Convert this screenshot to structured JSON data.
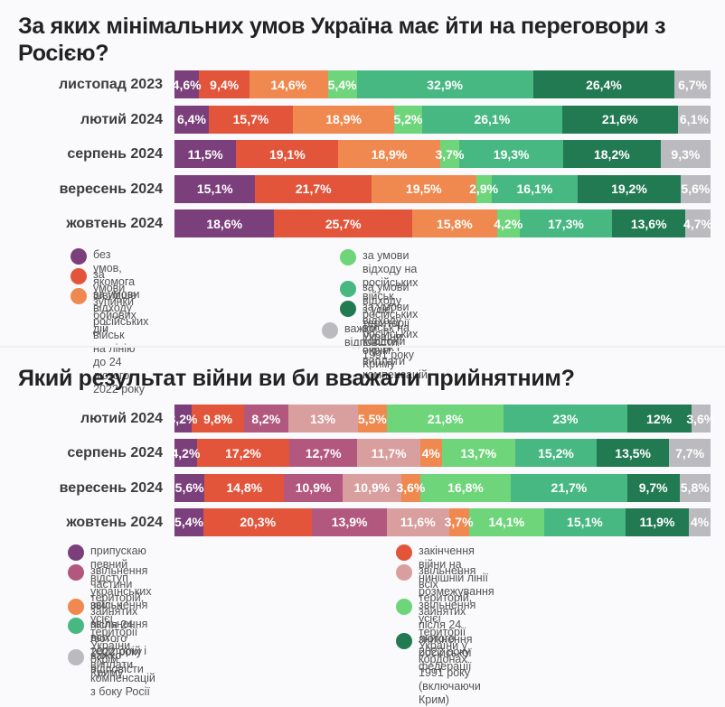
{
  "chart_data": [
    {
      "type": "bar",
      "orientation": "horizontal-stacked-100",
      "title": "За яких мінімальних умов Україна має йти на переговори з Росією?",
      "categories": [
        "листопад 2023",
        "лютий 2024",
        "серпень 2024",
        "вересень 2024",
        "жовтень 2024"
      ],
      "series": [
        {
          "name": "без умов, якомога швидше",
          "color": "#7b3f7b",
          "values": [
            4.6,
            6.4,
            11.5,
            15.1,
            18.6
          ],
          "labels": [
            "4,6%",
            "6,4%",
            "11,5%",
            "15,1%",
            "18,6%"
          ]
        },
        {
          "name": "за умови зупинки бойових дій",
          "color": "#e2553b",
          "values": [
            9.4,
            15.7,
            19.1,
            21.7,
            25.7
          ],
          "labels": [
            "9,4%",
            "15,7%",
            "19,1%",
            "21,7%",
            "25,7%"
          ]
        },
        {
          "name": "за умови відходу російських військ на лінію до 24 лютого 2022 року",
          "color": "#f0894f",
          "values": [
            14.6,
            18.9,
            18.9,
            19.5,
            15.8
          ],
          "labels": [
            "14,6%",
            "18,9%",
            "18,9%",
            "19,5%",
            "15,8%"
          ]
        },
        {
          "name": "за умови відходу на російських військ з усієї території України, окрім Криму",
          "color": "#6ed57b",
          "values": [
            5.4,
            5.2,
            3.7,
            2.9,
            4.2
          ],
          "labels": [
            "5,4%",
            "5,2%",
            "3,7%",
            "2,9%",
            "4,2%"
          ]
        },
        {
          "name": "за умови відходу російських військ на кордони 1991 року",
          "color": "#48b883",
          "values": [
            32.9,
            26.1,
            19.3,
            16.1,
            17.3
          ],
          "labels": [
            "32,9%",
            "26,1%",
            "19,3%",
            "16,1%",
            "17,3%"
          ]
        },
        {
          "name": "за умови відходу російських військ і виплати компенсацій",
          "color": "#227a52",
          "values": [
            26.4,
            21.6,
            18.2,
            19.2,
            13.6
          ],
          "labels": [
            "26,4%",
            "21,6%",
            "18,2%",
            "19,2%",
            "13,6%"
          ]
        },
        {
          "name": "важко відповісти",
          "color": "#bbbabe",
          "values": [
            6.7,
            6.1,
            9.3,
            5.6,
            4.7
          ],
          "labels": [
            "6,7%",
            "6,1%",
            "9,3%",
            "5,6%",
            "4,7%"
          ]
        }
      ],
      "legend_columns": [
        [
          0,
          1,
          2
        ],
        [
          3,
          4,
          5,
          6
        ]
      ],
      "legend_lines": [
        [
          "без умов, якомога швидше"
        ],
        [
          "за умови зупинки бойових дій"
        ],
        [
          "за умови відходу російських військ",
          "на лінію до 24 лютого 2022 року"
        ],
        [
          "за умови відходу на російських військ",
          "з усієї території України, окрім Криму"
        ],
        [
          "за умови відходу російських військ на кордони 1991 року"
        ],
        [
          "за умови відходу російських військ і виплати компенсацій"
        ],
        [
          "важко відповісти"
        ]
      ],
      "xlim": [
        0,
        100
      ]
    },
    {
      "type": "bar",
      "orientation": "horizontal-stacked-100",
      "title": "Який результат війни ви би вважали прийнятним?",
      "categories": [
        "лютий 2024",
        "серпень 2024",
        "вересень 2024",
        "жовтень 2024"
      ],
      "series": [
        {
          "name": "припускаю певний відступ українських військ",
          "color": "#7b3f7b",
          "values": [
            3.2,
            4.2,
            5.6,
            5.4
          ],
          "labels": [
            "3,2%",
            "4,2%",
            "5,6%",
            "5,4%"
          ]
        },
        {
          "name": "закінчення війни на нинішній лінії розмежування",
          "color": "#e2553b",
          "values": [
            9.8,
            17.2,
            14.8,
            20.3
          ],
          "labels": [
            "9,8%",
            "17,2%",
            "14,8%",
            "20,3%"
          ]
        },
        {
          "name": "звільнення частини територій, зайнятих після 24 лютого 2022 року",
          "color": "#b2587f",
          "values": [
            8.2,
            12.7,
            10.9,
            13.9
          ],
          "labels": [
            "8,2%",
            "12,7%",
            "10,9%",
            "13,9%"
          ]
        },
        {
          "name": "звільнення всіх територій, зайнятих після 24 лютого 2022 року",
          "color": "#d99e9e",
          "values": [
            13,
            11.7,
            10.9,
            11.6
          ],
          "labels": [
            "13%",
            "11,7%",
            "10,9%",
            "11,6%"
          ]
        },
        {
          "name": "звільнення усієї території України, окрім Криму",
          "color": "#f0894f",
          "values": [
            5.5,
            4,
            3.6,
            3.7
          ],
          "labels": [
            "5,5%",
            "4%",
            "3,6%",
            "3,7%"
          ]
        },
        {
          "name": "звільнення усієї території України у кордонах 1991 року (включаючи Крим)",
          "color": "#6ed57b",
          "values": [
            21.8,
            13.7,
            16.8,
            14.1
          ],
          "labels": [
            "21,8%",
            "13,7%",
            "16,8%",
            "14,1%"
          ]
        },
        {
          "name": "звільнення всіх територій і виплати компенсацій з боку Росії",
          "color": "#48b883",
          "values": [
            23,
            15.2,
            21.7,
            15.1
          ],
          "labels": [
            "23%",
            "15,2%",
            "21,7%",
            "15,1%"
          ]
        },
        {
          "name": "зникнення російської федерації",
          "color": "#227a52",
          "values": [
            12,
            13.5,
            9.7,
            11.9
          ],
          "labels": [
            "12%",
            "13,5%",
            "9,7%",
            "11,9%"
          ]
        },
        {
          "name": "важко відповісти",
          "color": "#bbbabe",
          "values": [
            3.6,
            7.7,
            5.8,
            4
          ],
          "labels": [
            "3,6%",
            "7,7%",
            "5,8%",
            "4%"
          ]
        }
      ],
      "legend_left": [
        0,
        2,
        4,
        6,
        8
      ],
      "legend_right": [
        1,
        3,
        5,
        7
      ],
      "legend_lines": [
        [
          "припускаю певний відступ українських військ"
        ],
        [
          "закінчення війни на нинішній лінії розмежування"
        ],
        [
          "звільнення частини територій,",
          "зайнятих після 24 лютого 2022 року"
        ],
        [
          "звільнення всіх територій, зайнятих",
          "після 24 лютого 2022 року"
        ],
        [
          "звільнення усієї території України, окрім Криму"
        ],
        [
          "звільнення усієї території України у кордонах",
          "1991 року (включаючи Крим)"
        ],
        [
          "звільнення всіх територій і виплати",
          "компенсацій з боку Росії"
        ],
        [
          "зникнення російської федерації"
        ],
        [
          "важко відповісти"
        ]
      ],
      "xlim": [
        0,
        100
      ]
    }
  ]
}
